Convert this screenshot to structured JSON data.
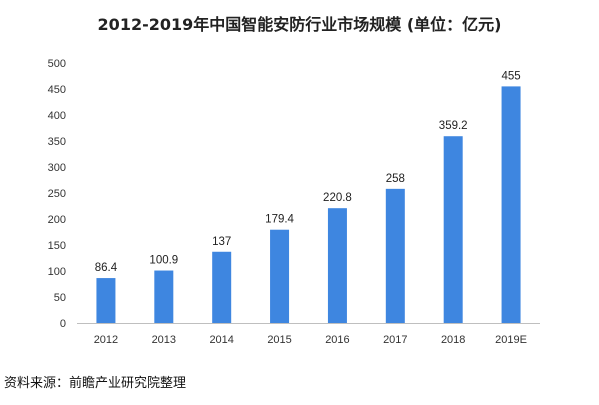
{
  "chart_data": {
    "type": "bar",
    "title": "2012-2019年中国智能安防行业市场规模 (单位：亿元)",
    "source": "资料来源：前瞻产业研究院整理",
    "categories": [
      "2012",
      "2013",
      "2014",
      "2015",
      "2016",
      "2017",
      "2018",
      "2019E"
    ],
    "values": [
      86.4,
      100.9,
      137,
      179.4,
      220.8,
      258,
      359.2,
      455
    ],
    "value_labels": [
      "86.4",
      "100.9",
      "137",
      "179.4",
      "220.8",
      "258",
      "359.2",
      "455"
    ],
    "xlabel": "",
    "ylabel": "",
    "ylim": [
      0,
      500
    ],
    "yticks": [
      0,
      50,
      100,
      150,
      200,
      250,
      300,
      350,
      400,
      450,
      500
    ],
    "grid": false,
    "legend": "none",
    "bar_color": "#3E86E0"
  }
}
